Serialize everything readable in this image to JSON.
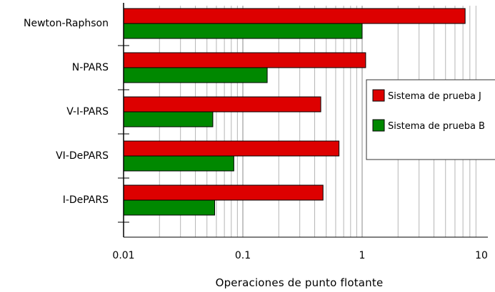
{
  "chart_data": {
    "type": "bar",
    "orientation": "horizontal",
    "title": "",
    "xlabel": "Operaciones de punto flotante",
    "ylabel": "",
    "xscale": "log",
    "xlim": [
      0.01,
      10
    ],
    "xticks": [
      "0.01",
      "0.1",
      "1",
      "10"
    ],
    "grid": true,
    "legend_position": "right",
    "categories": [
      "Newton-Raphson",
      "N-PARS",
      "V-I-PARS",
      "VI-DePARS",
      "I-DePARS"
    ],
    "series": [
      {
        "name": "Sistema de prueba J",
        "color": "#dd0000",
        "values": [
          7.3,
          1.07,
          0.45,
          0.64,
          0.47
        ]
      },
      {
        "name": "Sistema de prueba B",
        "color": "#008800",
        "values": [
          1.0,
          0.16,
          0.056,
          0.084,
          0.058
        ]
      }
    ]
  }
}
